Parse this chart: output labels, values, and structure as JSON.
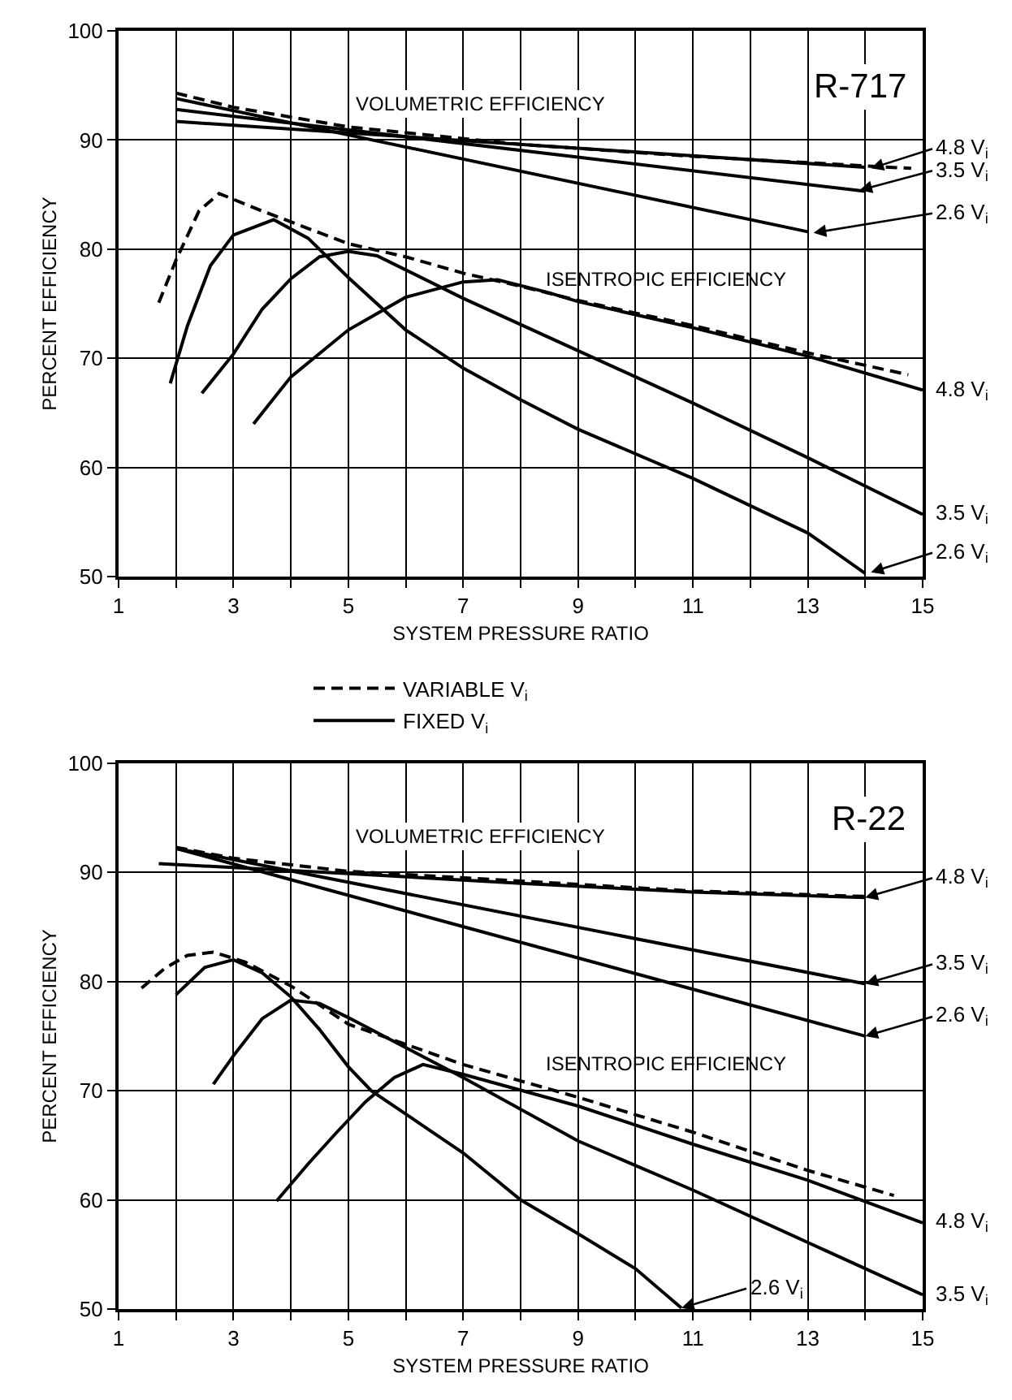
{
  "chart_data": [
    {
      "type": "line",
      "xlabel": "SYSTEM PRESSURE RATIO",
      "ylabel": "PERCENT EFFICIENCY",
      "xlim": [
        1,
        15
      ],
      "xticks": [
        1,
        {
          "value": 2,
          "label": null
        },
        3,
        {
          "value": 4,
          "label": null
        },
        5,
        {
          "value": 6,
          "label": null
        },
        7,
        {
          "value": 8,
          "label": null
        },
        9,
        {
          "value": 10,
          "label": null
        },
        11,
        {
          "value": 12,
          "label": null
        },
        13,
        {
          "value": 14,
          "label": null
        },
        15
      ],
      "ylim": [
        50,
        100
      ],
      "yticks": [
        50,
        60,
        70,
        80,
        90,
        100
      ],
      "grid": true,
      "marker": "none",
      "legend": "bottom",
      "series": [
        {
          "name": "VARIABLE V$_{i}$",
          "color": "#000000",
          "line_style": "dashed",
          "x": [
            2,
            3,
            5,
            8,
            11,
            14.8
          ],
          "values": [
            94.3,
            93.0,
            91.2,
            89.6,
            88.5,
            87.4
          ]
        },
        {
          "color": "#000000",
          "line_style": "solid",
          "x": [
            2,
            13
          ],
          "values": [
            93.8,
            81.6
          ]
        },
        {
          "color": "#000000",
          "line_style": "solid",
          "x": [
            2,
            14
          ],
          "values": [
            92.8,
            85.3
          ]
        },
        {
          "name": "FIXED V$_{i}$",
          "color": "#000000",
          "line_style": "solid",
          "x": [
            2,
            14
          ],
          "values": [
            91.7,
            87.5
          ]
        },
        {
          "color": "#000000",
          "line_style": "dashed",
          "x": [
            1.7,
            2.0,
            2.4,
            2.75,
            3.5,
            4.5,
            5,
            6,
            7,
            8,
            9,
            11,
            13,
            14.75
          ],
          "values": [
            75.1,
            79.0,
            83.5,
            85.1,
            83.5,
            81.5,
            80.5,
            79.3,
            77.8,
            76.6,
            75.3,
            73.0,
            70.5,
            68.5
          ]
        },
        {
          "color": "#000000",
          "line_style": "solid",
          "x": [
            1.9,
            2.2,
            2.6,
            3,
            3.7,
            4.3,
            5,
            6,
            7,
            8,
            9,
            11,
            13,
            14
          ],
          "values": [
            67.7,
            73.0,
            78.5,
            81.3,
            82.7,
            81.0,
            77.4,
            72.6,
            69.1,
            66.2,
            63.5,
            59.0,
            54.0,
            50.3
          ]
        },
        {
          "color": "#000000",
          "line_style": "solid",
          "x": [
            2.45,
            3,
            3.5,
            4,
            4.5,
            5,
            5.5,
            6,
            7,
            9,
            11,
            13,
            15
          ],
          "values": [
            66.8,
            70.4,
            74.5,
            77.3,
            79.3,
            79.8,
            79.4,
            78.1,
            75.5,
            70.7,
            65.9,
            60.9,
            55.7
          ]
        },
        {
          "color": "#000000",
          "line_style": "solid",
          "x": [
            3.35,
            4,
            5,
            6,
            7,
            7.6,
            8.5,
            9,
            11,
            13,
            15
          ],
          "values": [
            64.0,
            68.3,
            72.6,
            75.6,
            77.0,
            77.2,
            76.0,
            75.2,
            72.8,
            70.2,
            67.1
          ]
        }
      ],
      "annotations": [
        "R-717",
        "VOLUMETRIC EFFICIENCY",
        "ISENTROPIC EFFICIENCY",
        {
          "text": "4.8 V$_{i}$",
          "x": 14.1,
          "y": 87.4
        },
        {
          "text": "3.5 V$_{i}$",
          "x": 13.9,
          "y": 85.4
        },
        {
          "text": "2.6 V$_{i}$",
          "x": 13.1,
          "y": 81.5
        },
        {
          "text": "4.8 V$_{i}$",
          "x": 15,
          "y": 67.1
        },
        {
          "text": "3.5 V$_{i}$",
          "x": 15,
          "y": 55.7
        },
        {
          "text": "2.6 V$_{i}$",
          "x": 14.1,
          "y": 50.4
        }
      ]
    },
    {
      "type": "line",
      "xlabel": "SYSTEM PRESSURE RATIO",
      "ylabel": "PERCENT EFFICIENCY",
      "xlim": [
        1,
        15
      ],
      "xticks": [
        1,
        {
          "value": 2,
          "label": null
        },
        3,
        {
          "value": 4,
          "label": null
        },
        5,
        {
          "value": 6,
          "label": null
        },
        7,
        {
          "value": 8,
          "label": null
        },
        9,
        {
          "value": 10,
          "label": null
        },
        11,
        {
          "value": 12,
          "label": null
        },
        13,
        {
          "value": 14,
          "label": null
        },
        15
      ],
      "ylim": [
        50,
        100
      ],
      "yticks": [
        50,
        60,
        70,
        80,
        90,
        100
      ],
      "grid": true,
      "marker": "none",
      "series": [
        {
          "color": "#000000",
          "line_style": "dashed",
          "x": [
            2,
            3,
            5,
            7,
            9,
            11,
            14
          ],
          "values": [
            92.3,
            91.3,
            90.1,
            89.5,
            88.9,
            88.3,
            87.8
          ]
        },
        {
          "color": "#000000",
          "line_style": "solid",
          "x": [
            2,
            14
          ],
          "values": [
            92.2,
            75.0
          ]
        },
        {
          "color": "#000000",
          "line_style": "solid",
          "x": [
            2,
            14
          ],
          "values": [
            92.2,
            79.8
          ]
        },
        {
          "color": "#000000",
          "line_style": "solid",
          "x": [
            1.7,
            5,
            8,
            11,
            14
          ],
          "values": [
            90.8,
            89.9,
            89.0,
            88.2,
            87.7
          ]
        },
        {
          "color": "#000000",
          "line_style": "dashed",
          "x": [
            1.4,
            1.8,
            2.2,
            2.65,
            3.2,
            4,
            5,
            7,
            9,
            11,
            13,
            14.5
          ],
          "values": [
            79.4,
            81.2,
            82.4,
            82.7,
            81.8,
            79.6,
            76.1,
            72.4,
            69.4,
            66.2,
            62.7,
            60.4
          ]
        },
        {
          "color": "#000000",
          "line_style": "solid",
          "x": [
            2,
            2.5,
            3,
            3.5,
            4,
            4.5,
            5,
            5.4,
            7,
            8,
            9,
            10,
            10.8
          ],
          "values": [
            78.8,
            81.3,
            82.0,
            80.8,
            78.6,
            75.6,
            72.2,
            70.0,
            64.3,
            60.0,
            56.9,
            53.7,
            50.1
          ]
        },
        {
          "color": "#000000",
          "line_style": "solid",
          "x": [
            2.65,
            3,
            3.5,
            4,
            4.5,
            5,
            7,
            9,
            11,
            13,
            15
          ],
          "values": [
            70.6,
            73.2,
            76.6,
            78.3,
            78.0,
            76.7,
            71.2,
            65.4,
            60.9,
            56.1,
            51.3
          ]
        },
        {
          "color": "#000000",
          "line_style": "solid",
          "x": [
            3.75,
            4.3,
            4.8,
            5.3,
            5.8,
            6.3,
            7,
            9,
            11,
            13,
            15
          ],
          "values": [
            59.9,
            63.3,
            66.2,
            69.0,
            71.2,
            72.4,
            71.5,
            68.6,
            65.1,
            61.8,
            57.9
          ]
        }
      ],
      "annotations": [
        "R-22",
        "VOLUMETRIC EFFICIENCY",
        "ISENTROPIC EFFICIENCY",
        {
          "text": "4.8 V$_{i}$",
          "x": 14,
          "y": 87.7
        },
        {
          "text": "3.5 V$_{i}$",
          "x": 14,
          "y": 79.8
        },
        {
          "text": "2.6 V$_{i}$",
          "x": 14,
          "y": 75.0
        },
        {
          "text": "4.8 V$_{i}$",
          "x": 15,
          "y": 57.9
        },
        {
          "text": "3.5 V$_{i}$",
          "x": 15,
          "y": 51.3
        },
        {
          "text": "2.6 V$_{i}$",
          "x": 10.8,
          "y": 50.1
        }
      ]
    }
  ]
}
